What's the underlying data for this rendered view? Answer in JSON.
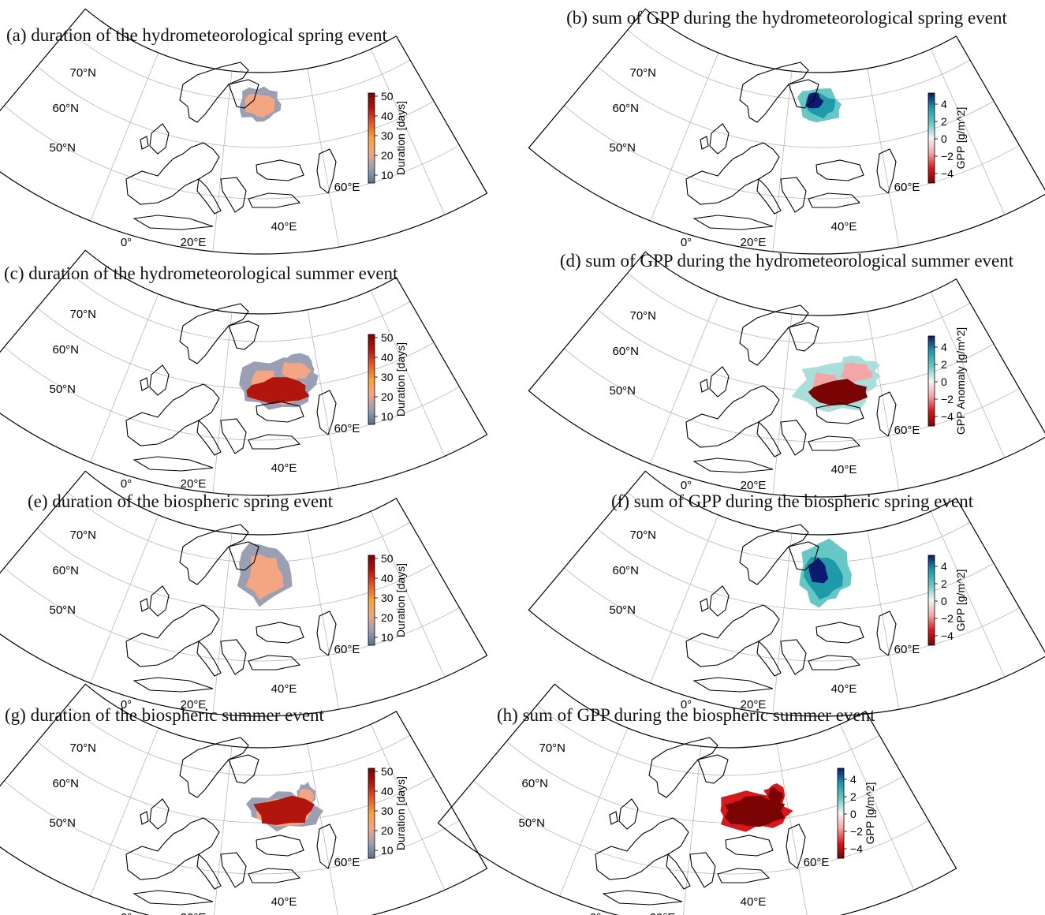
{
  "figure": {
    "panels": [
      {
        "id": "a",
        "title": "(a) duration of the hydrometeorological spring event",
        "kind": "duration",
        "region": "spring",
        "colorbar": {
          "label": "Duration [days]",
          "ticks": [
            "50",
            "40",
            "30",
            "20",
            "10"
          ]
        }
      },
      {
        "id": "b",
        "title": "(b) sum of GPP during the hydrometeorological spring event",
        "kind": "gpp-pos",
        "region": "spring",
        "colorbar": {
          "label": "GPP [g/m^2]",
          "ticks": [
            "4",
            "2",
            "0",
            "−2",
            "−4"
          ]
        }
      },
      {
        "id": "c",
        "title": "(c) duration of the hydrometeorological summer event",
        "kind": "duration",
        "region": "summer",
        "colorbar": {
          "label": "Duration [days]",
          "ticks": [
            "50",
            "40",
            "30",
            "20",
            "10"
          ]
        }
      },
      {
        "id": "d",
        "title": "(d) sum of GPP during the hydrometeorological summer event",
        "kind": "gpp-mixed",
        "region": "summer",
        "colorbar": {
          "label": "GPP Anomaly [g/m^2]",
          "ticks": [
            "4",
            "2",
            "0",
            "−2",
            "−4"
          ]
        }
      },
      {
        "id": "e",
        "title": "(e) duration of the biospheric spring event",
        "kind": "duration",
        "region": "bio-spring",
        "colorbar": {
          "label": "Duration [days]",
          "ticks": [
            "50",
            "40",
            "30",
            "20",
            "10"
          ]
        }
      },
      {
        "id": "f",
        "title": "(f) sum of GPP during the biospheric spring event",
        "kind": "gpp-pos",
        "region": "bio-spring",
        "colorbar": {
          "label": "GPP [g/m^2]",
          "ticks": [
            "4",
            "2",
            "0",
            "−2",
            "−4"
          ]
        }
      },
      {
        "id": "g",
        "title": "(g) duration of the biospheric summer event",
        "kind": "duration",
        "region": "bio-summer",
        "colorbar": {
          "label": "Duration [days]",
          "ticks": [
            "50",
            "40",
            "30",
            "20",
            "10"
          ]
        }
      },
      {
        "id": "h",
        "title": "(h) sum of GPP during the biospheric summer event",
        "kind": "gpp-neg",
        "region": "bio-summer",
        "colorbar": {
          "label": "GPP [g/m^2]",
          "ticks": [
            "4",
            "2",
            "0",
            "−2",
            "−4"
          ]
        }
      }
    ],
    "map_labels": {
      "lat": [
        "70°N",
        "60°N",
        "50°N"
      ],
      "lon": [
        "0°",
        "20°E",
        "40°E",
        "60°E"
      ]
    },
    "colors": {
      "duration_scale": [
        "#5a6f8f",
        "#9aa0b8",
        "#f4a582",
        "#f7a13c",
        "#e1582b",
        "#b1150e",
        "#7a0403"
      ],
      "gpp_scale": [
        "#7a0403",
        "#d7191c",
        "#f4a6a6",
        "#f5f5f5",
        "#67c6c6",
        "#1f9aa8",
        "#0b1a6e"
      ],
      "coastline": "#000000",
      "gridline": "#b8b8b8"
    }
  }
}
